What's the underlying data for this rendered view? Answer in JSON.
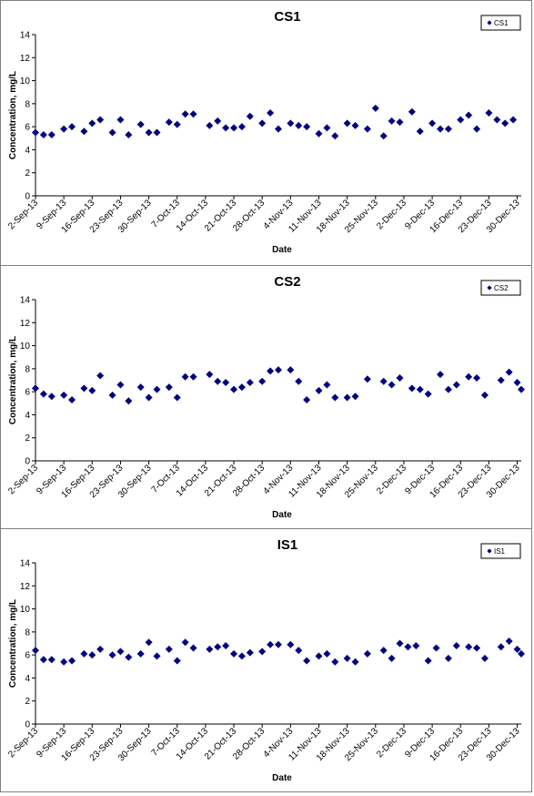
{
  "chart_data": [
    {
      "type": "scatter",
      "title": "CS1",
      "xlabel": "Date",
      "ylabel": "Concentration, mg/L",
      "ylim": [
        0,
        14
      ],
      "yticks": [
        0,
        2,
        4,
        6,
        8,
        10,
        12,
        14
      ],
      "xlim": [
        "2013-09-02",
        "2013-12-31"
      ],
      "xtick_labels": [
        "2-Sep-13",
        "9-Sep-13",
        "16-Sep-13",
        "23-Sep-13",
        "30-Sep-13",
        "7-Oct-13",
        "14-Oct-13",
        "21-Oct-13",
        "28-Oct-13",
        "4-Nov-13",
        "11-Nov-13",
        "18-Nov-13",
        "25-Nov-13",
        "2-Dec-13",
        "9-Dec-13",
        "16-Dec-13",
        "23-Dec-13",
        "30-Dec-13"
      ],
      "grid": false,
      "legend_position": "top-right",
      "marker_color": "#000080",
      "series": [
        {
          "name": "CS1",
          "x": [
            "2013-09-02",
            "2013-09-04",
            "2013-09-06",
            "2013-09-09",
            "2013-09-11",
            "2013-09-14",
            "2013-09-16",
            "2013-09-18",
            "2013-09-21",
            "2013-09-23",
            "2013-09-25",
            "2013-09-28",
            "2013-09-30",
            "2013-10-02",
            "2013-10-05",
            "2013-10-07",
            "2013-10-09",
            "2013-10-11",
            "2013-10-15",
            "2013-10-17",
            "2013-10-19",
            "2013-10-21",
            "2013-10-23",
            "2013-10-25",
            "2013-10-28",
            "2013-10-30",
            "2013-11-01",
            "2013-11-04",
            "2013-11-06",
            "2013-11-08",
            "2013-11-11",
            "2013-11-13",
            "2013-11-15",
            "2013-11-18",
            "2013-11-20",
            "2013-11-23",
            "2013-11-25",
            "2013-11-27",
            "2013-11-29",
            "2013-12-01",
            "2013-12-04",
            "2013-12-06",
            "2013-12-09",
            "2013-12-11",
            "2013-12-13",
            "2013-12-16",
            "2013-12-18",
            "2013-12-20",
            "2013-12-23",
            "2013-12-25",
            "2013-12-27",
            "2013-12-29"
          ],
          "y": [
            5.5,
            5.3,
            5.3,
            5.8,
            6.0,
            5.6,
            6.3,
            6.6,
            5.5,
            6.6,
            5.3,
            6.2,
            5.5,
            5.5,
            6.4,
            6.2,
            7.1,
            7.1,
            6.1,
            6.5,
            5.9,
            5.9,
            6.0,
            6.9,
            6.3,
            7.2,
            5.8,
            6.3,
            6.1,
            6.0,
            5.4,
            5.9,
            5.2,
            6.3,
            6.1,
            5.8,
            7.6,
            5.2,
            6.5,
            6.4,
            7.3,
            5.6,
            6.3,
            5.8,
            5.8,
            6.6,
            7.0,
            5.8,
            7.2,
            6.6,
            6.3,
            6.6
          ]
        }
      ]
    },
    {
      "type": "scatter",
      "title": "CS2",
      "xlabel": "Date",
      "ylabel": "Concentration, mg/L",
      "ylim": [
        0,
        14
      ],
      "yticks": [
        0,
        2,
        4,
        6,
        8,
        10,
        12,
        14
      ],
      "xlim": [
        "2013-09-02",
        "2013-12-31"
      ],
      "xtick_labels": [
        "2-Sep-13",
        "9-Sep-13",
        "16-Sep-13",
        "23-Sep-13",
        "30-Sep-13",
        "7-Oct-13",
        "14-Oct-13",
        "21-Oct-13",
        "28-Oct-13",
        "4-Nov-13",
        "11-Nov-13",
        "18-Nov-13",
        "25-Nov-13",
        "2-Dec-13",
        "9-Dec-13",
        "16-Dec-13",
        "23-Dec-13",
        "30-Dec-13"
      ],
      "grid": false,
      "legend_position": "top-right",
      "marker_color": "#000080",
      "series": [
        {
          "name": "CS2",
          "x": [
            "2013-09-02",
            "2013-09-04",
            "2013-09-06",
            "2013-09-09",
            "2013-09-11",
            "2013-09-14",
            "2013-09-16",
            "2013-09-18",
            "2013-09-21",
            "2013-09-23",
            "2013-09-25",
            "2013-09-28",
            "2013-09-30",
            "2013-10-02",
            "2013-10-05",
            "2013-10-07",
            "2013-10-09",
            "2013-10-11",
            "2013-10-15",
            "2013-10-17",
            "2013-10-19",
            "2013-10-21",
            "2013-10-23",
            "2013-10-25",
            "2013-10-28",
            "2013-10-30",
            "2013-11-01",
            "2013-11-04",
            "2013-11-06",
            "2013-11-08",
            "2013-11-11",
            "2013-11-13",
            "2013-11-15",
            "2013-11-18",
            "2013-11-20",
            "2013-11-23",
            "2013-11-27",
            "2013-11-29",
            "2013-12-01",
            "2013-12-04",
            "2013-12-06",
            "2013-12-08",
            "2013-12-11",
            "2013-12-13",
            "2013-12-15",
            "2013-12-18",
            "2013-12-20",
            "2013-12-22",
            "2013-12-26",
            "2013-12-28",
            "2013-12-30",
            "2013-12-31"
          ],
          "y": [
            6.3,
            5.8,
            5.6,
            5.7,
            5.3,
            6.3,
            6.1,
            7.4,
            5.7,
            6.6,
            5.2,
            6.4,
            5.5,
            6.2,
            6.4,
            5.5,
            7.3,
            7.3,
            7.5,
            6.9,
            6.8,
            6.2,
            6.4,
            6.8,
            6.9,
            7.8,
            7.9,
            7.9,
            6.9,
            5.3,
            6.1,
            6.6,
            5.5,
            5.5,
            5.6,
            7.1,
            6.9,
            6.6,
            7.2,
            6.3,
            6.2,
            5.8,
            7.5,
            6.2,
            6.6,
            7.3,
            7.2,
            5.7,
            7.0,
            7.7,
            6.8,
            6.2
          ]
        }
      ]
    },
    {
      "type": "scatter",
      "title": "IS1",
      "xlabel": "Date",
      "ylabel": "Concentration, mg/L",
      "ylim": [
        0,
        14
      ],
      "yticks": [
        0,
        2,
        4,
        6,
        8,
        10,
        12,
        14
      ],
      "xlim": [
        "2013-09-02",
        "2013-12-31"
      ],
      "xtick_labels": [
        "2-Sep-13",
        "9-Sep-13",
        "16-Sep-13",
        "23-Sep-13",
        "30-Sep-13",
        "7-Oct-13",
        "14-Oct-13",
        "21-Oct-13",
        "28-Oct-13",
        "4-Nov-13",
        "11-Nov-13",
        "18-Nov-13",
        "25-Nov-13",
        "2-Dec-13",
        "9-Dec-13",
        "16-Dec-13",
        "23-Dec-13",
        "30-Dec-13"
      ],
      "grid": false,
      "legend_position": "top-right",
      "marker_color": "#000080",
      "series": [
        {
          "name": "IS1",
          "x": [
            "2013-09-02",
            "2013-09-04",
            "2013-09-06",
            "2013-09-09",
            "2013-09-11",
            "2013-09-14",
            "2013-09-16",
            "2013-09-18",
            "2013-09-21",
            "2013-09-23",
            "2013-09-25",
            "2013-09-28",
            "2013-09-30",
            "2013-10-02",
            "2013-10-05",
            "2013-10-07",
            "2013-10-09",
            "2013-10-11",
            "2013-10-15",
            "2013-10-17",
            "2013-10-19",
            "2013-10-21",
            "2013-10-23",
            "2013-10-25",
            "2013-10-28",
            "2013-10-30",
            "2013-11-01",
            "2013-11-04",
            "2013-11-06",
            "2013-11-08",
            "2013-11-11",
            "2013-11-13",
            "2013-11-15",
            "2013-11-18",
            "2013-11-20",
            "2013-11-23",
            "2013-11-27",
            "2013-11-29",
            "2013-12-01",
            "2013-12-03",
            "2013-12-05",
            "2013-12-08",
            "2013-12-10",
            "2013-12-13",
            "2013-12-15",
            "2013-12-18",
            "2013-12-20",
            "2013-12-22",
            "2013-12-26",
            "2013-12-28",
            "2013-12-30",
            "2013-12-31"
          ],
          "y": [
            6.4,
            5.6,
            5.6,
            5.4,
            5.5,
            6.1,
            6.0,
            6.5,
            6.0,
            6.3,
            5.8,
            6.1,
            7.1,
            5.9,
            6.5,
            5.5,
            7.1,
            6.6,
            6.5,
            6.7,
            6.8,
            6.1,
            5.9,
            6.2,
            6.3,
            6.9,
            6.9,
            6.9,
            6.4,
            5.5,
            5.9,
            6.1,
            5.4,
            5.7,
            5.4,
            6.1,
            6.4,
            5.7,
            7.0,
            6.7,
            6.8,
            5.5,
            6.6,
            5.7,
            6.8,
            6.7,
            6.6,
            5.7,
            6.7,
            7.2,
            6.5,
            6.1
          ]
        }
      ]
    }
  ]
}
